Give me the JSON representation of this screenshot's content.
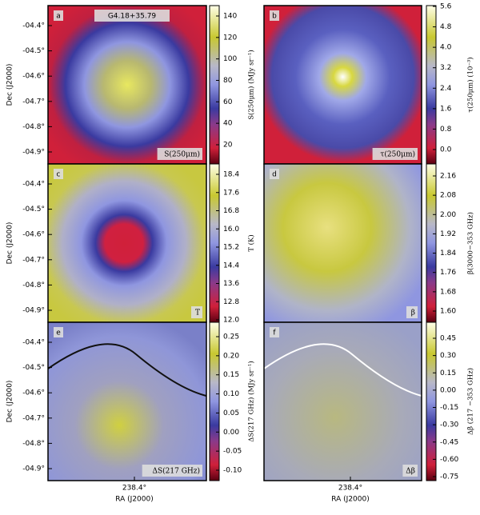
{
  "title": "G4.18+35.79",
  "dec_label": "Dec (J2000)",
  "dec_ticks": [
    "-04.4°",
    "-04.5°",
    "-04.6°",
    "-04.7°",
    "-04.8°",
    "-04.9°"
  ],
  "ra_tick": "238.4°",
  "ra_label": "RA (J2000)",
  "panels": [
    {
      "letter": "a",
      "tag": "S(250μm)",
      "colorbar_label": "S(250μm) (MJy sr⁻¹)",
      "colorbar_ticks": [
        "140",
        "120",
        "100",
        "80",
        "60",
        "40",
        "20"
      ]
    },
    {
      "letter": "b",
      "tag": "τ(250μm)",
      "colorbar_label": "τ(250μm) (10⁻³)",
      "colorbar_ticks": [
        "5.6",
        "4.8",
        "4.0",
        "3.2",
        "2.4",
        "1.6",
        "0.8",
        "0.0"
      ]
    },
    {
      "letter": "c",
      "tag": "T",
      "colorbar_label": "T (K)",
      "colorbar_ticks": [
        "18.4",
        "17.6",
        "16.8",
        "16.0",
        "15.2",
        "14.4",
        "13.6",
        "12.8",
        "12.0"
      ]
    },
    {
      "letter": "d",
      "tag": "β",
      "colorbar_label": "β(3000−353 GHz)",
      "colorbar_ticks": [
        "2.16",
        "2.08",
        "2.00",
        "1.92",
        "1.84",
        "1.76",
        "1.68",
        "1.60"
      ]
    },
    {
      "letter": "e",
      "tag": "ΔS(217 GHz)",
      "colorbar_label": "ΔS(217 GHz) (MJy sr⁻¹)",
      "colorbar_ticks": [
        "0.25",
        "0.20",
        "0.15",
        "0.10",
        "0.05",
        "0.00",
        "-0.05",
        "-0.10"
      ]
    },
    {
      "letter": "f",
      "tag": "Δβ",
      "colorbar_label": "Δβ (217 −353 GHz)",
      "colorbar_ticks": [
        "0.45",
        "0.30",
        "0.15",
        "0.00",
        "-0.15",
        "-0.30",
        "-0.45",
        "-0.60",
        "-0.75"
      ]
    }
  ]
}
